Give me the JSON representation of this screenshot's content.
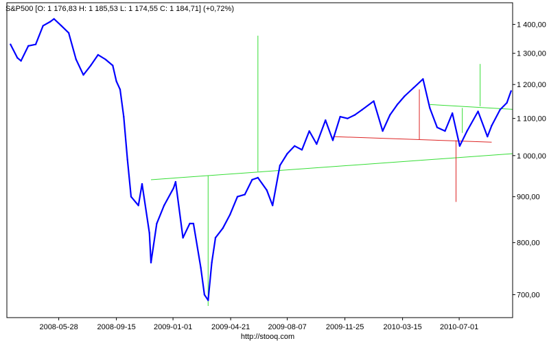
{
  "chart_data": {
    "type": "line",
    "title": "S&P500 [O: 1 176,83  H: 1 185,53  L: 1 174,55  C: 1 184,71] (+0,72%)",
    "scale": "log",
    "grid": false,
    "legend_position": "top-left",
    "footer": "http://stooq.com",
    "y_ticks": [
      "1 400,00",
      "1 300,00",
      "1 200,00",
      "1 100,00",
      "1 000,00",
      "900,00",
      "800,00",
      "700,00"
    ],
    "y_tick_values": [
      1400,
      1300,
      1200,
      1100,
      1000,
      900,
      800,
      700
    ],
    "ylim": [
      660,
      1480
    ],
    "x_ticks": [
      "2008-05-28",
      "2008-09-15",
      "2009-01-01",
      "2009-04-21",
      "2009-08-07",
      "2009-11-25",
      "2010-03-15",
      "2010-07-01"
    ],
    "x_tick_dates": [
      "2008-05-28",
      "2008-09-15",
      "2009-01-01",
      "2009-04-21",
      "2009-08-07",
      "2009-11-25",
      "2010-03-15",
      "2010-07-01"
    ],
    "xlim": [
      "2008-02-19",
      "2010-10-11"
    ],
    "series": [
      {
        "color": "#0000ff",
        "points": [
          [
            "2008-02-26",
            1330
          ],
          [
            "2008-03-10",
            1285
          ],
          [
            "2008-03-17",
            1275
          ],
          [
            "2008-03-31",
            1325
          ],
          [
            "2008-04-14",
            1330
          ],
          [
            "2008-04-28",
            1395
          ],
          [
            "2008-05-12",
            1410
          ],
          [
            "2008-05-19",
            1420
          ],
          [
            "2008-06-02",
            1395
          ],
          [
            "2008-06-16",
            1370
          ],
          [
            "2008-06-30",
            1280
          ],
          [
            "2008-07-14",
            1230
          ],
          [
            "2008-07-28",
            1260
          ],
          [
            "2008-08-11",
            1295
          ],
          [
            "2008-08-25",
            1280
          ],
          [
            "2008-09-08",
            1260
          ],
          [
            "2008-09-15",
            1210
          ],
          [
            "2008-09-22",
            1185
          ],
          [
            "2008-09-29",
            1105
          ],
          [
            "2008-10-06",
            990
          ],
          [
            "2008-10-13",
            900
          ],
          [
            "2008-10-27",
            880
          ],
          [
            "2008-11-03",
            930
          ],
          [
            "2008-11-17",
            820
          ],
          [
            "2008-11-20",
            760
          ],
          [
            "2008-12-01",
            840
          ],
          [
            "2008-12-15",
            880
          ],
          [
            "2009-01-02",
            920
          ],
          [
            "2009-01-06",
            935
          ],
          [
            "2009-01-20",
            810
          ],
          [
            "2009-02-02",
            840
          ],
          [
            "2009-02-09",
            840
          ],
          [
            "2009-02-23",
            750
          ],
          [
            "2009-03-02",
            700
          ],
          [
            "2009-03-09",
            690
          ],
          [
            "2009-03-16",
            760
          ],
          [
            "2009-03-23",
            810
          ],
          [
            "2009-04-06",
            830
          ],
          [
            "2009-04-20",
            860
          ],
          [
            "2009-05-04",
            900
          ],
          [
            "2009-05-18",
            905
          ],
          [
            "2009-06-01",
            940
          ],
          [
            "2009-06-12",
            945
          ],
          [
            "2009-06-29",
            915
          ],
          [
            "2009-07-10",
            880
          ],
          [
            "2009-07-24",
            975
          ],
          [
            "2009-08-07",
            1005
          ],
          [
            "2009-08-21",
            1025
          ],
          [
            "2009-09-04",
            1015
          ],
          [
            "2009-09-18",
            1065
          ],
          [
            "2009-10-02",
            1030
          ],
          [
            "2009-10-19",
            1095
          ],
          [
            "2009-11-02",
            1040
          ],
          [
            "2009-11-16",
            1105
          ],
          [
            "2009-11-30",
            1100
          ],
          [
            "2009-12-14",
            1110
          ],
          [
            "2009-12-28",
            1125
          ],
          [
            "2010-01-19",
            1150
          ],
          [
            "2010-02-05",
            1065
          ],
          [
            "2010-02-19",
            1110
          ],
          [
            "2010-03-05",
            1140
          ],
          [
            "2010-03-19",
            1165
          ],
          [
            "2010-04-05",
            1190
          ],
          [
            "2010-04-23",
            1217
          ],
          [
            "2010-05-06",
            1130
          ],
          [
            "2010-05-20",
            1075
          ],
          [
            "2010-06-04",
            1065
          ],
          [
            "2010-06-18",
            1115
          ],
          [
            "2010-07-02",
            1025
          ],
          [
            "2010-07-16",
            1065
          ],
          [
            "2010-08-06",
            1120
          ],
          [
            "2010-08-24",
            1050
          ],
          [
            "2010-09-01",
            1080
          ],
          [
            "2010-09-17",
            1125
          ],
          [
            "2010-09-30",
            1145
          ],
          [
            "2010-10-08",
            1180
          ]
        ]
      }
    ],
    "annotation_lines": [
      {
        "color": "#33dd33",
        "from": [
          "2008-11-20",
          940
        ],
        "to": [
          "2010-10-11",
          1005
        ]
      },
      {
        "color": "#33dd33",
        "from": [
          "2009-03-09",
          950
        ],
        "to": [
          "2009-03-09",
          680
        ]
      },
      {
        "color": "#33dd33",
        "from": [
          "2009-06-12",
          1360
        ],
        "to": [
          "2009-06-12",
          960
        ]
      },
      {
        "color": "#33dd33",
        "from": [
          "2010-05-06",
          1140
        ],
        "to": [
          "2010-10-11",
          1126
        ]
      },
      {
        "color": "#33dd33",
        "from": [
          "2010-07-07",
          1130
        ],
        "to": [
          "2010-07-07",
          1060
        ]
      },
      {
        "color": "#33dd33",
        "from": [
          "2010-08-10",
          1265
        ],
        "to": [
          "2010-08-10",
          1135
        ]
      },
      {
        "color": "#dd2222",
        "from": [
          "2009-11-02",
          1050
        ],
        "to": [
          "2010-09-01",
          1035
        ]
      },
      {
        "color": "#dd2222",
        "from": [
          "2010-04-16",
          1185
        ],
        "to": [
          "2010-04-16",
          1042
        ]
      },
      {
        "color": "#dd2222",
        "from": [
          "2010-06-25",
          1040
        ],
        "to": [
          "2010-06-25",
          888
        ]
      }
    ]
  }
}
